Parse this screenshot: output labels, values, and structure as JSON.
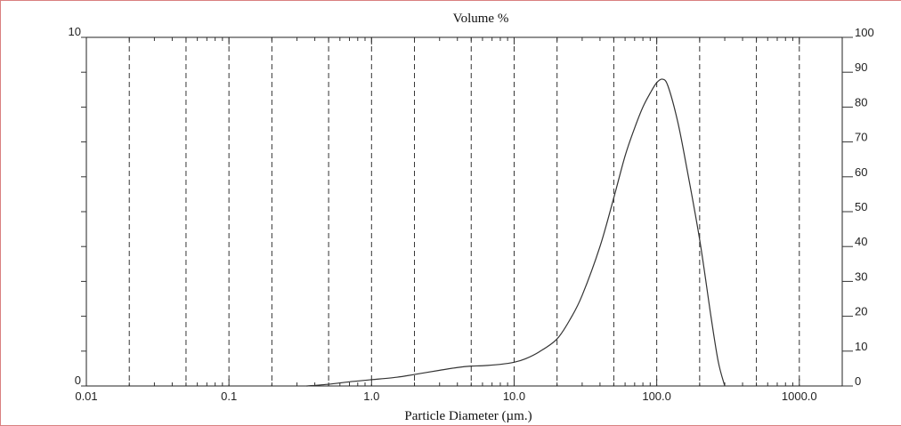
{
  "chart_data": {
    "type": "line",
    "title": "Volume %",
    "xlabel": "Particle Diameter (µm.)",
    "x_scale": "log",
    "xlim": [
      0.01,
      2000
    ],
    "ylim_left": [
      0,
      10
    ],
    "ylim_right": [
      0,
      100
    ],
    "x_tick_labels": [
      {
        "value": 0.01,
        "label": "0.01"
      },
      {
        "value": 0.1,
        "label": "0.1"
      },
      {
        "value": 1,
        "label": "1.0"
      },
      {
        "value": 10,
        "label": "10.0"
      },
      {
        "value": 100,
        "label": "100.0"
      },
      {
        "value": 1000,
        "label": "1000.0"
      }
    ],
    "y_left_tick_labels": [
      {
        "value": 0,
        "label": "0"
      },
      {
        "value": 10,
        "label": "10"
      }
    ],
    "y_right_tick_labels": [
      {
        "value": 0,
        "label": "0"
      },
      {
        "value": 10,
        "label": "10"
      },
      {
        "value": 20,
        "label": "20"
      },
      {
        "value": 30,
        "label": "30"
      },
      {
        "value": 40,
        "label": "40"
      },
      {
        "value": 50,
        "label": "50"
      },
      {
        "value": 60,
        "label": "60"
      },
      {
        "value": 70,
        "label": "70"
      },
      {
        "value": 80,
        "label": "80"
      },
      {
        "value": 90,
        "label": "90"
      },
      {
        "value": 100,
        "label": "100"
      }
    ],
    "gridlines_x": [
      0.02,
      0.05,
      0.1,
      0.2,
      0.5,
      1,
      2,
      5,
      10,
      20,
      50,
      100,
      200,
      500,
      1000
    ],
    "series": [
      {
        "x": [
          0.35,
          0.5,
          0.7,
          1.0,
          1.5,
          2,
          3,
          4,
          5,
          6,
          8,
          10,
          12,
          15,
          20,
          25,
          30,
          40,
          50,
          60,
          70,
          80,
          90,
          100,
          110,
          120,
          140,
          160,
          200,
          240,
          270,
          300
        ],
        "y": [
          0.0,
          0.05,
          0.12,
          0.18,
          0.25,
          0.33,
          0.45,
          0.53,
          0.57,
          0.58,
          0.62,
          0.68,
          0.78,
          0.98,
          1.35,
          1.95,
          2.6,
          4.0,
          5.4,
          6.6,
          7.4,
          8.0,
          8.4,
          8.7,
          8.8,
          8.6,
          7.6,
          6.4,
          4.2,
          2.0,
          0.7,
          0.0
        ]
      }
    ]
  }
}
